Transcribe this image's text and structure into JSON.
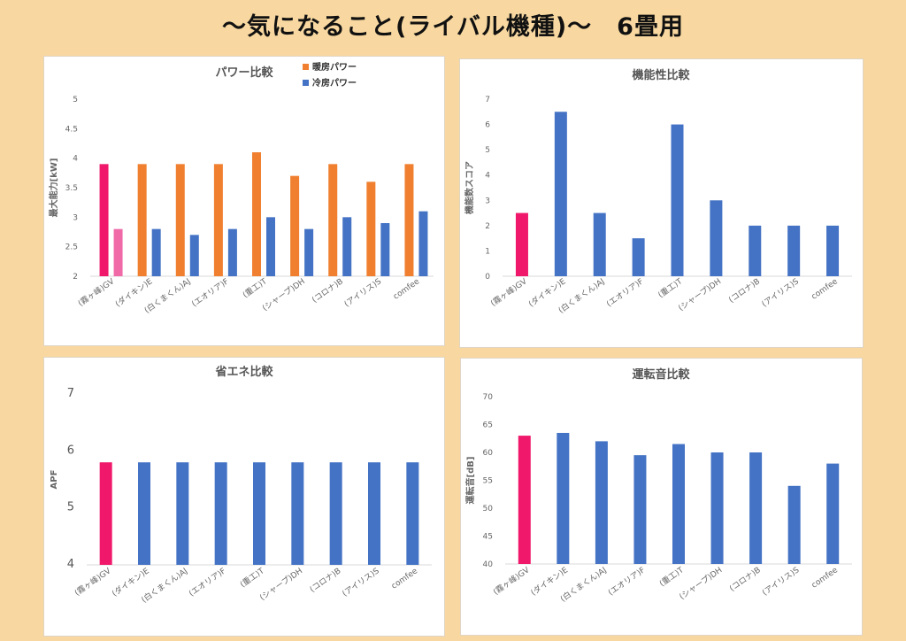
{
  "page": {
    "title": "〜気になること(ライバル機種)〜　6畳用"
  },
  "colors": {
    "background": "#f8d8a0",
    "highlight": "#f0186a",
    "highlight_light": "#f06aa8",
    "heating": "#f08030",
    "cooling": "#4472c4"
  },
  "chart_data": [
    {
      "id": "power",
      "type": "bar",
      "title": "パワー比較",
      "ylabel": "最大能力[kW]",
      "xlabel": "",
      "ylim": [
        2,
        5
      ],
      "yticks": [
        "2",
        "2.5",
        "3",
        "3.5",
        "4",
        "4.5",
        "5"
      ],
      "grid": false,
      "legend": "top-right",
      "categories": [
        "(霧ヶ峰)GV",
        "(ダイキン)E",
        "(白くまくん)AJ",
        "(エオリア)F",
        "(重工)T",
        "(シャープ)DH",
        "(コロナ)B",
        "(アイリス)S",
        "comfee"
      ],
      "series": [
        {
          "name": "暖房パワー",
          "values": [
            3.9,
            3.9,
            3.9,
            3.9,
            4.1,
            3.7,
            3.9,
            3.6,
            3.9
          ]
        },
        {
          "name": "冷房パワー",
          "values": [
            2.8,
            2.8,
            2.7,
            2.8,
            3.0,
            2.8,
            3.0,
            2.9,
            3.1
          ]
        }
      ]
    },
    {
      "id": "func",
      "type": "bar",
      "title": "機能性比較",
      "ylabel": "機能数スコア",
      "xlabel": "",
      "ylim": [
        0,
        7
      ],
      "yticks": [
        "0",
        "1",
        "2",
        "3",
        "4",
        "5",
        "6",
        "7"
      ],
      "grid": false,
      "categories": [
        "(霧ヶ峰)GV",
        "(ダイキン)E",
        "(白くまくん)AJ",
        "(エオリア)F",
        "(重工)T",
        "(シャープ)DH",
        "(コロナ)B",
        "(アイリス)S",
        "comfee"
      ],
      "values": [
        2.5,
        6.5,
        2.5,
        1.5,
        6.0,
        3.0,
        2.0,
        2.0,
        2.0
      ]
    },
    {
      "id": "apf",
      "type": "bar",
      "title": "省エネ比較",
      "ylabel": "APF",
      "xlabel": "",
      "ylim": [
        4,
        7
      ],
      "yticks": [
        "4",
        "5",
        "6",
        "7"
      ],
      "grid": false,
      "categories": [
        "(霧ヶ峰)GV",
        "(ダイキン)E",
        "(白くまくん)AJ",
        "(エオリア)F",
        "(重工)T",
        "(シャープ)DH",
        "(コロナ)B",
        "(アイリス)S",
        "comfee"
      ],
      "values": [
        5.8,
        5.8,
        5.8,
        5.8,
        5.8,
        5.8,
        5.8,
        5.8,
        5.8
      ]
    },
    {
      "id": "noise",
      "type": "bar",
      "title": "運転音比較",
      "ylabel": "運転音[dB]",
      "xlabel": "",
      "ylim": [
        40,
        70
      ],
      "yticks": [
        "40",
        "45",
        "50",
        "55",
        "60",
        "65",
        "70"
      ],
      "grid": false,
      "categories": [
        "(霧ヶ峰)GV",
        "(ダイキン)E",
        "(白くまくん)AJ",
        "(エオリア)F",
        "(重工)T",
        "(シャープ)DH",
        "(コロナ)B",
        "(アイリス)S",
        "comfee"
      ],
      "values": [
        63,
        63.5,
        62,
        59.5,
        61.5,
        60,
        60,
        54,
        58
      ]
    }
  ]
}
